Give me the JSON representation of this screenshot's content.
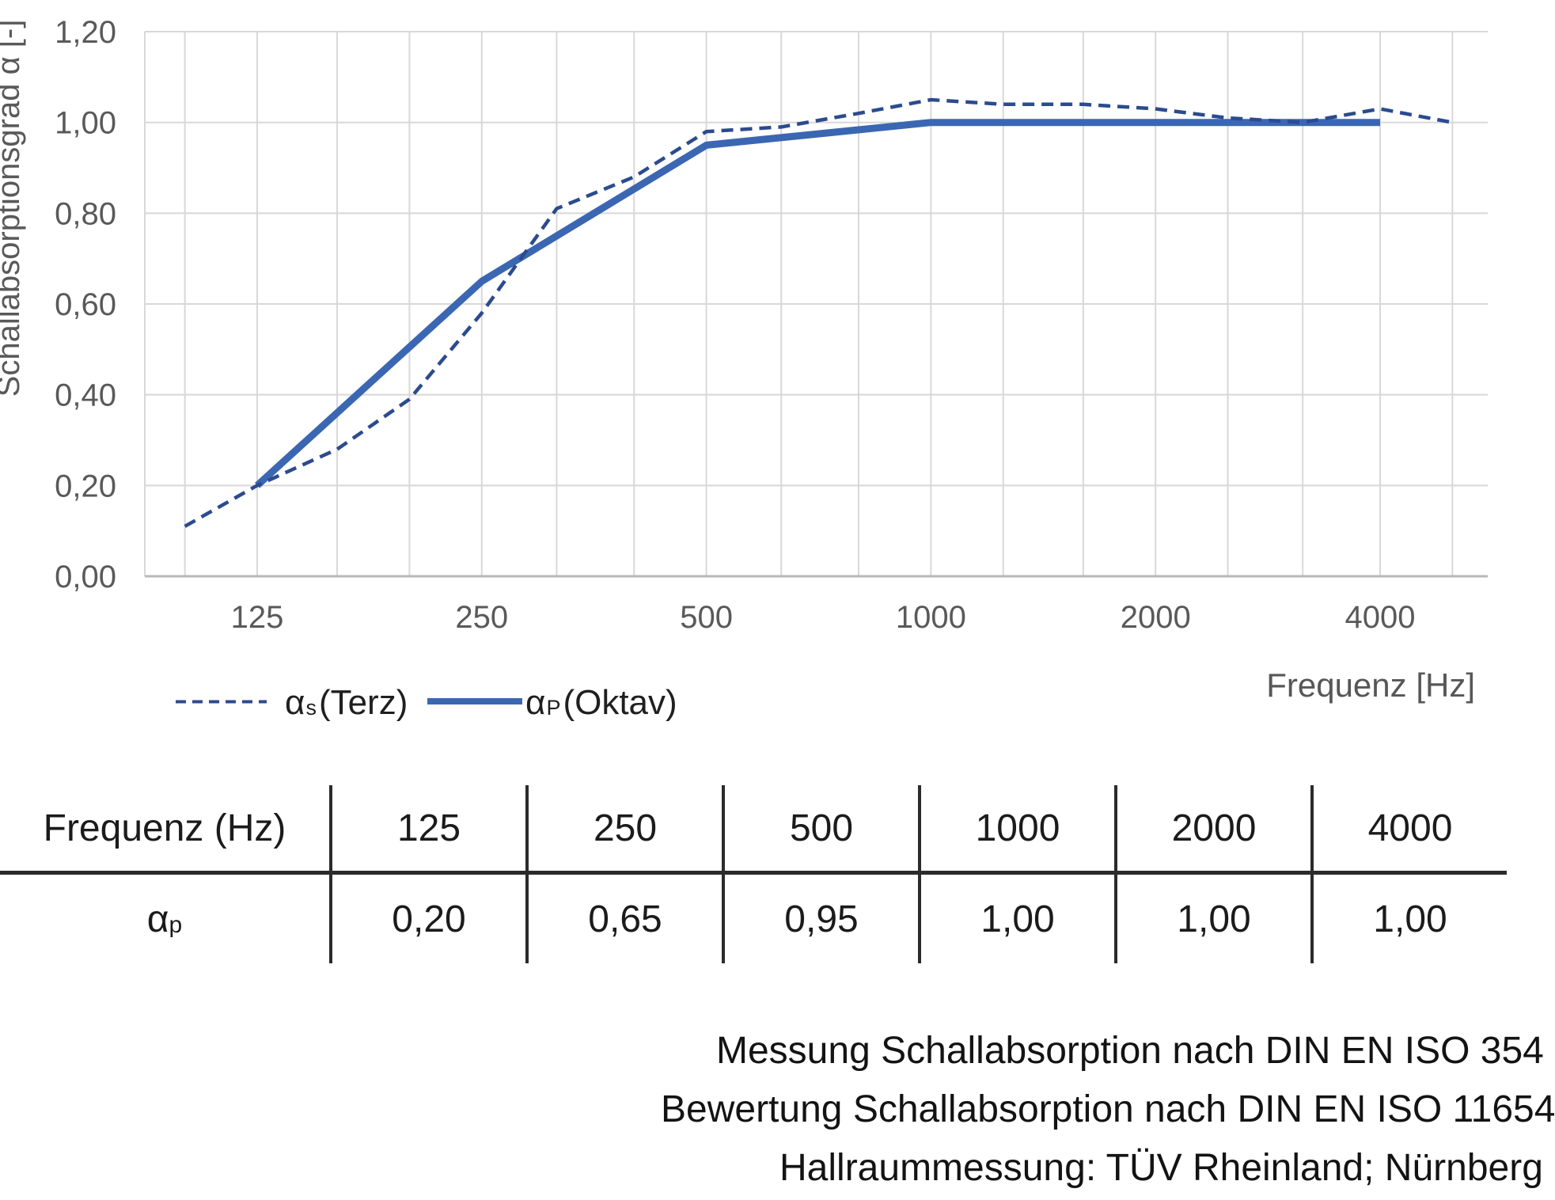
{
  "chart": {
    "ylabel": "Schallabsorptionsgrad α [-]",
    "xlabel": "Frequenz [Hz]",
    "y_ticks": [
      {
        "value": 0.0,
        "label": "0,00"
      },
      {
        "value": 0.2,
        "label": "0,20"
      },
      {
        "value": 0.4,
        "label": "0,40"
      },
      {
        "value": 0.6,
        "label": "0,60"
      },
      {
        "value": 0.8,
        "label": "0,80"
      },
      {
        "value": 1.0,
        "label": "1,00"
      },
      {
        "value": 1.2,
        "label": "1,20"
      }
    ],
    "x_ticks": [
      {
        "freq": 125,
        "label": "125"
      },
      {
        "freq": 250,
        "label": "250"
      },
      {
        "freq": 500,
        "label": "500"
      },
      {
        "freq": 1000,
        "label": "1000"
      },
      {
        "freq": 2000,
        "label": "2000"
      },
      {
        "freq": 4000,
        "label": "4000"
      }
    ],
    "gridline_freqs": [
      100,
      125,
      160,
      200,
      250,
      315,
      400,
      500,
      630,
      800,
      1000,
      1250,
      1600,
      2000,
      2500,
      3150,
      4000,
      5000,
      6300
    ],
    "colors": {
      "grid": "#d8d8d8",
      "axis": "#b8b8b8",
      "tick_text": "#595959",
      "dashed_series": "#2c4b8e",
      "solid_series": "#3b67b2"
    },
    "legend": [
      {
        "base": "α",
        "sub": "s",
        "rest": "(Terz)",
        "style": "dashed"
      },
      {
        "base": "α",
        "sub": "P",
        "rest": "(Oktav)",
        "style": "solid"
      }
    ]
  },
  "chart_data": {
    "type": "line",
    "title": "",
    "xlabel": "Frequenz [Hz]",
    "ylabel": "Schallabsorptionsgrad α [-]",
    "x_scale": "log",
    "ylim": [
      0,
      1.2
    ],
    "grid": true,
    "legend_position": "bottom-left",
    "series": [
      {
        "name": "αs (Terz)",
        "line_style": "dashed",
        "x": [
          100,
          125,
          160,
          200,
          250,
          315,
          400,
          500,
          630,
          800,
          1000,
          1250,
          1600,
          2000,
          2500,
          3150,
          4000,
          5000
        ],
        "values": [
          0.11,
          0.2,
          0.28,
          0.39,
          0.58,
          0.81,
          0.88,
          0.98,
          0.99,
          1.02,
          1.05,
          1.04,
          1.04,
          1.03,
          1.01,
          1.0,
          1.03,
          1.0
        ]
      },
      {
        "name": "αP (Oktav)",
        "line_style": "solid",
        "x": [
          125,
          250,
          500,
          1000,
          2000,
          4000
        ],
        "values": [
          0.2,
          0.65,
          0.95,
          1.0,
          1.0,
          1.0
        ]
      }
    ]
  },
  "table": {
    "header": [
      "Frequenz (Hz)",
      "125",
      "250",
      "500",
      "1000",
      "2000",
      "4000"
    ],
    "row": {
      "label_base": "α",
      "label_sub": "p",
      "values": [
        "0,20",
        "0,65",
        "0,95",
        "1,00",
        "1,00",
        "1,00"
      ]
    }
  },
  "footnotes": [
    "Messung Schallabsorption nach DIN EN ISO 354",
    "Bewertung Schallabsorption nach DIN EN ISO 11654",
    "Hallraummessung: TÜV Rheinland; Nürnberg"
  ]
}
